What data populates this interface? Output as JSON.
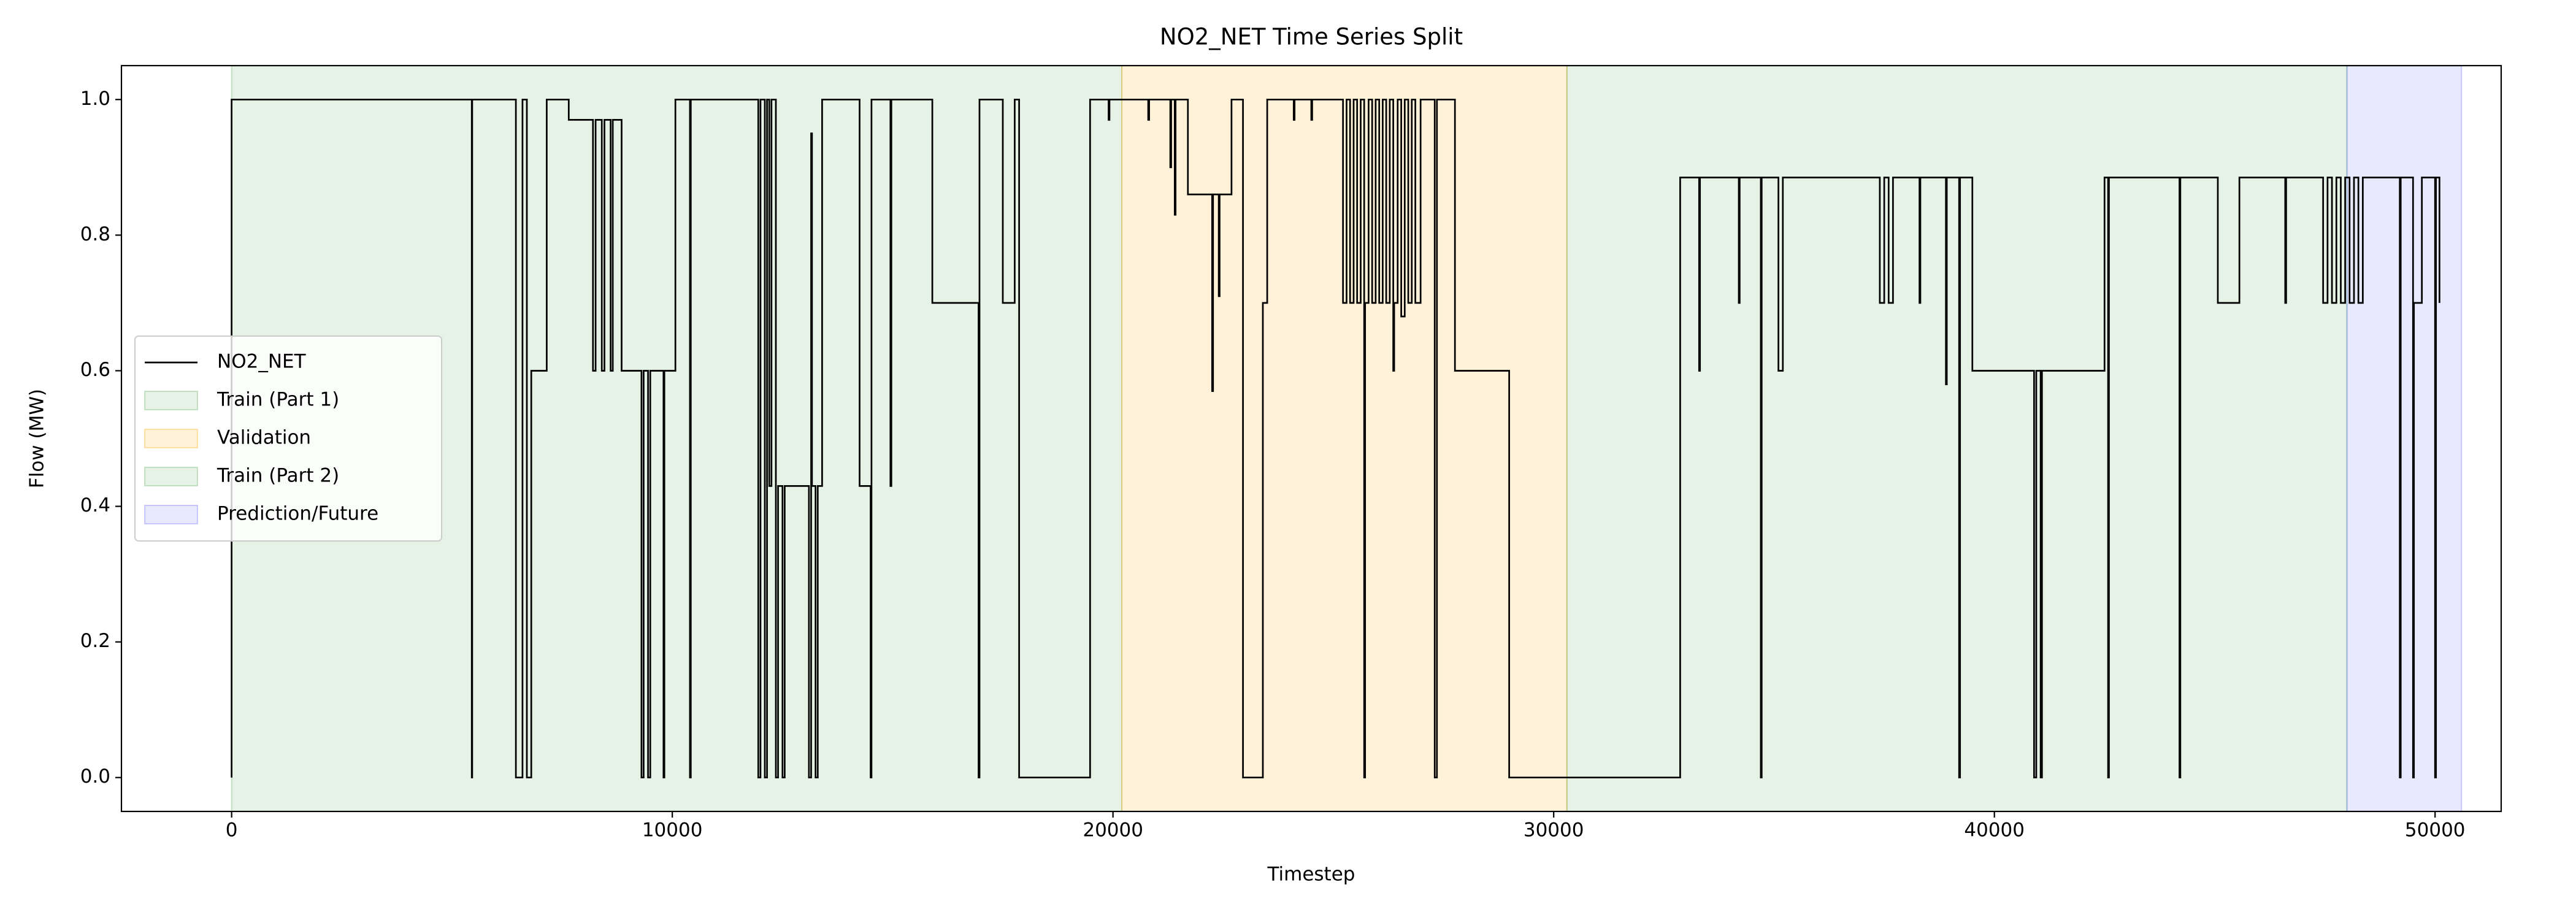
{
  "chart_data": {
    "type": "line",
    "title": "NO2_NET Time Series Split",
    "x_label": "Timestep",
    "y_label": "Flow (MW)",
    "xlim": [
      -2500,
      51500
    ],
    "xticks": [
      0,
      10000,
      20000,
      30000,
      40000,
      50000
    ],
    "ylim": [
      -0.05,
      1.05
    ],
    "yticks": [
      {
        "value": 0,
        "label": "0.0"
      },
      0.2,
      0.4,
      0.6,
      0.8,
      {
        "value": 1,
        "label": "1.0"
      }
    ],
    "legend": "center left",
    "series": [
      {
        "name": "NO2_NET",
        "color": "#000000",
        "x": [
          0,
          0,
          5450,
          5450,
          5460,
          5460,
          6450,
          6450,
          6600,
          6600,
          6700,
          6700,
          6800,
          6800,
          7150,
          7150,
          7650,
          7650,
          8200,
          8200,
          8260,
          8260,
          8400,
          8400,
          8460,
          8460,
          8600,
          8600,
          8650,
          8650,
          8850,
          8850,
          9300,
          9300,
          9350,
          9350,
          9450,
          9450,
          9500,
          9500,
          9800,
          9800,
          9820,
          9820,
          10070,
          10070,
          10400,
          10400,
          10420,
          10420,
          11950,
          11950,
          12000,
          12000,
          12100,
          12100,
          12150,
          12150,
          12200,
          12200,
          12250,
          12250,
          12350,
          12350,
          12400,
          12400,
          12500,
          12500,
          12550,
          12550,
          13100,
          13100,
          13150,
          13150,
          13170,
          13170,
          13250,
          13250,
          13300,
          13300,
          13400,
          13400,
          14250,
          14250,
          14500,
          14500,
          14520,
          14520,
          14950,
          14950,
          14970,
          14970,
          15900,
          15900,
          16950,
          16950,
          16970,
          16970,
          17500,
          17500,
          17770,
          17770,
          17870,
          17870,
          19480,
          19480,
          19900,
          19900,
          19920,
          19920,
          20800,
          20800,
          20820,
          20820,
          21300,
          21300,
          21320,
          21320,
          21400,
          21400,
          21420,
          21420,
          21700,
          21700,
          22250,
          22250,
          22270,
          22270,
          22400,
          22400,
          22420,
          22420,
          22690,
          22690,
          22950,
          22950,
          23400,
          23400,
          23500,
          23500,
          24100,
          24100,
          24120,
          24120,
          24500,
          24500,
          24520,
          24520,
          25220,
          25220,
          25300,
          25300,
          25380,
          25380,
          25460,
          25460,
          25540,
          25540,
          25620,
          25620,
          25700,
          25700,
          25720,
          25720,
          25800,
          25800,
          25880,
          25880,
          25960,
          25960,
          26040,
          26040,
          26120,
          26120,
          26200,
          26200,
          26280,
          26280,
          26360,
          26360,
          26380,
          26380,
          26460,
          26460,
          26540,
          26540,
          26620,
          26620,
          26700,
          26700,
          26780,
          26780,
          26860,
          26860,
          26980,
          26980,
          27300,
          27300,
          27350,
          27350,
          27760,
          27760,
          28990,
          28990,
          32870,
          32870,
          33300,
          33300,
          33320,
          33320,
          34200,
          34200,
          34220,
          34220,
          34700,
          34700,
          34720,
          34720,
          35100,
          35100,
          35200,
          35200,
          37400,
          37400,
          37500,
          37500,
          37600,
          37600,
          37700,
          37700,
          38300,
          38300,
          38320,
          38320,
          38900,
          38900,
          38920,
          38920,
          39200,
          39200,
          39220,
          39220,
          39500,
          39500,
          40900,
          40900,
          40950,
          40950,
          41050,
          41050,
          41080,
          41080,
          42500,
          42500,
          42580,
          42580,
          42600,
          42600,
          44200,
          44200,
          44220,
          44220,
          45070,
          45070,
          45560,
          45560,
          46600,
          46600,
          46620,
          46620,
          47460,
          47460,
          47560,
          47560,
          47660,
          47660,
          47760,
          47760,
          47860,
          47860,
          47960,
          47960,
          48060,
          48060,
          48160,
          48160,
          48260,
          48260,
          48360,
          48360,
          49200,
          49200,
          49220,
          49220,
          49500,
          49500,
          49520,
          49520,
          49700,
          49700,
          50000,
          50000,
          50020,
          50020,
          50100,
          50100
        ],
        "values": [
          0,
          1,
          1,
          0,
          0,
          1,
          1,
          0,
          0,
          1,
          1,
          0,
          0,
          0.6,
          0.6,
          1,
          1,
          0.97,
          0.97,
          0.6,
          0.6,
          0.97,
          0.97,
          0.6,
          0.6,
          0.97,
          0.97,
          0.6,
          0.6,
          0.97,
          0.97,
          0.6,
          0.6,
          0,
          0,
          0.6,
          0.6,
          0,
          0,
          0.6,
          0.6,
          0,
          0,
          0.6,
          0.6,
          1,
          1,
          0,
          0,
          1,
          1,
          0,
          0,
          1,
          1,
          0,
          0,
          1,
          1,
          0.43,
          0.43,
          1,
          1,
          0,
          0,
          0.43,
          0.43,
          0,
          0,
          0.43,
          0.43,
          0,
          0,
          0.95,
          0.95,
          0.43,
          0.43,
          0,
          0,
          0.43,
          0.43,
          1,
          1,
          0.43,
          0.43,
          0,
          0,
          1,
          1,
          0.43,
          0.43,
          1,
          1,
          0.7,
          0.7,
          0,
          0,
          1,
          1,
          0.7,
          0.7,
          1,
          1,
          0,
          0,
          1,
          1,
          0.97,
          0.97,
          1,
          1,
          0.97,
          0.97,
          1,
          1,
          0.9,
          0.9,
          1,
          1,
          0.83,
          0.83,
          1,
          1,
          0.86,
          0.86,
          0.57,
          0.57,
          0.86,
          0.86,
          0.71,
          0.71,
          0.86,
          0.86,
          1,
          1,
          0,
          0,
          0.7,
          0.7,
          1,
          1,
          0.97,
          0.97,
          1,
          1,
          0.97,
          0.97,
          1,
          1,
          0.7,
          0.7,
          1,
          1,
          0.7,
          0.7,
          1,
          1,
          0.7,
          0.7,
          1,
          1,
          0,
          0,
          0.7,
          0.7,
          1,
          1,
          0.7,
          0.7,
          1,
          1,
          0.7,
          0.7,
          1,
          1,
          0.7,
          0.7,
          1,
          1,
          0.6,
          0.6,
          0.7,
          0.7,
          1,
          1,
          0.68,
          0.68,
          1,
          1,
          0.7,
          0.7,
          1,
          1,
          0.7,
          0.7,
          1,
          1,
          0,
          0,
          1,
          1,
          0.6,
          0.6,
          0,
          0,
          0.885,
          0.885,
          0.6,
          0.6,
          0.885,
          0.885,
          0.7,
          0.7,
          0.885,
          0.885,
          0,
          0,
          0.885,
          0.885,
          0.6,
          0.6,
          0.885,
          0.885,
          0.7,
          0.7,
          0.885,
          0.885,
          0.7,
          0.7,
          0.885,
          0.885,
          0.7,
          0.7,
          0.885,
          0.885,
          0.58,
          0.58,
          0.885,
          0.885,
          0,
          0,
          0.885,
          0.885,
          0.6,
          0.6,
          0,
          0,
          0.6,
          0.6,
          0,
          0,
          0.6,
          0.6,
          0.885,
          0.885,
          0,
          0,
          0.885,
          0.885,
          0,
          0,
          0.885,
          0.885,
          0.7,
          0.7,
          0.885,
          0.885,
          0.7,
          0.7,
          0.885,
          0.885,
          0.7,
          0.7,
          0.885,
          0.885,
          0.7,
          0.7,
          0.885,
          0.885,
          0.7,
          0.7,
          0.885,
          0.885,
          0.7,
          0.7,
          0.885,
          0.885,
          0.7,
          0.7,
          0.885,
          0.885,
          0,
          0,
          0.885,
          0.885,
          0,
          0,
          0.7,
          0.7,
          0.885,
          0.885,
          0,
          0,
          0.885,
          0.885,
          0.7
        ]
      }
    ],
    "spans": [
      {
        "name": "Train (Part 1)",
        "color": "green",
        "alpha": 0.1,
        "start": 0,
        "end": 20200
      },
      {
        "name": "Validation",
        "color": "orange",
        "alpha": 0.15,
        "start": 20200,
        "end": 30300
      },
      {
        "name": "Train (Part 2)",
        "color": "green",
        "alpha": 0.1,
        "start": 30300,
        "end": 48000
      },
      {
        "name": "Prediction/Future",
        "color": "blue",
        "alpha": 0.09,
        "start": 48000,
        "end": 50600
      }
    ]
  }
}
